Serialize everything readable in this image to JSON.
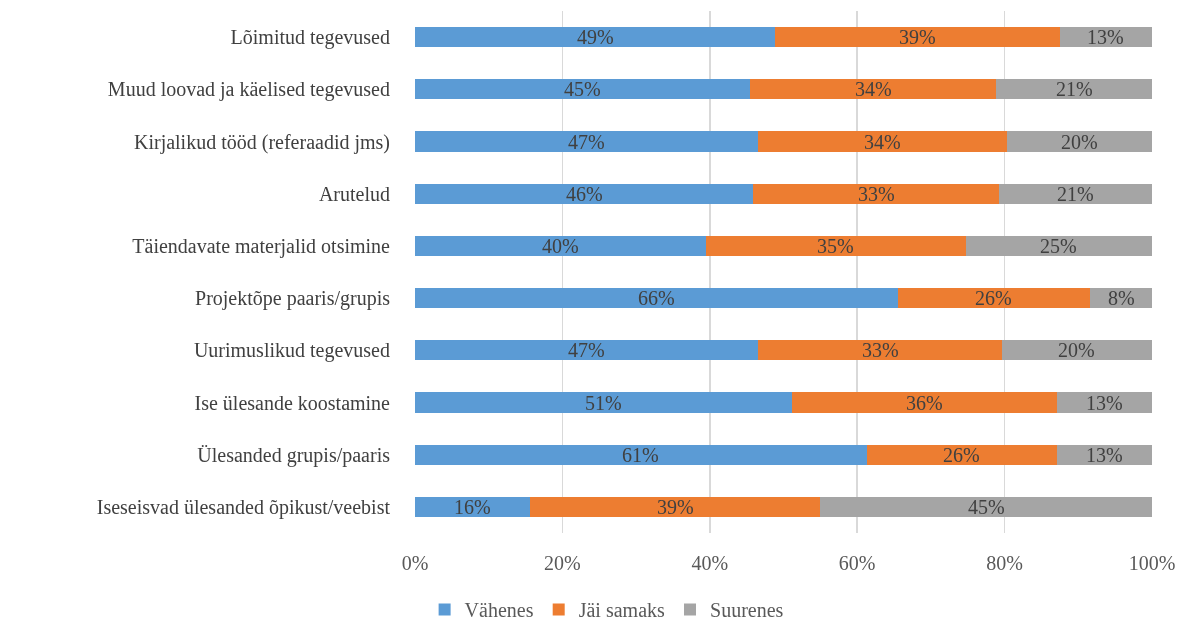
{
  "chart_data": {
    "type": "bar",
    "orientation": "horizontal",
    "stacked": true,
    "categories": [
      "Lõimitud tegevused",
      "Muud loovad ja käelised tegevused",
      "Kirjalikud tööd (referaadid jms)",
      "Arutelud",
      "Täiendavate materjalid otsimine",
      "Projektõpe paaris/grupis",
      "Uurimuslikud tegevused",
      "Ise ülesande koostamine",
      "Ülesanded grupis/paaris",
      "Iseseisvad ülesanded õpikust/veebist"
    ],
    "series": [
      {
        "name": "Vähenes",
        "color": "#5b9bd5",
        "values": [
          48.9,
          45.4,
          46.6,
          45.9,
          39.5,
          65.5,
          46.6,
          51.1,
          61.3,
          15.6
        ],
        "value_labels": [
          "49%",
          "45%",
          "47%",
          "46%",
          "40%",
          "66%",
          "47%",
          "51%",
          "61%",
          "16%"
        ]
      },
      {
        "name": "Jäi samaks",
        "color": "#ed7d31",
        "values": [
          38.6,
          33.5,
          33.7,
          33.4,
          35.2,
          26.1,
          33.0,
          36.0,
          25.8,
          39.4
        ],
        "value_labels": [
          "39%",
          "34%",
          "34%",
          "33%",
          "35%",
          "26%",
          "33%",
          "36%",
          "26%",
          "39%"
        ]
      },
      {
        "name": "Suurenes",
        "color": "#a5a5a5",
        "values": [
          12.5,
          21.1,
          19.7,
          20.7,
          25.3,
          8.4,
          20.4,
          12.9,
          12.9,
          45.0
        ],
        "value_labels": [
          "13%",
          "21%",
          "20%",
          "21%",
          "25%",
          "8%",
          "20%",
          "13%",
          "13%",
          "45%"
        ]
      }
    ],
    "xlim": [
      0,
      100
    ],
    "xticks": [
      {
        "value": 0,
        "label": "0%"
      },
      {
        "value": 20,
        "label": "20%"
      },
      {
        "value": 40,
        "label": "40%"
      },
      {
        "value": 60,
        "label": "60%"
      },
      {
        "value": 80,
        "label": "80%"
      },
      {
        "value": 100,
        "label": "100%"
      }
    ],
    "grid": "x",
    "legend": "bottom"
  }
}
